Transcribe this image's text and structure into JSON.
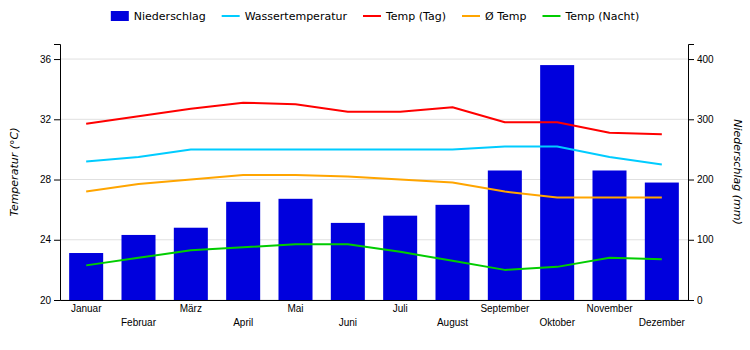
{
  "chart_data": {
    "type": "line",
    "categories": [
      "Januar",
      "Februar",
      "März",
      "April",
      "Mai",
      "Juni",
      "Juli",
      "August",
      "September",
      "Oktober",
      "November",
      "Dezember"
    ],
    "series": [
      {
        "name": "Niederschlag",
        "type": "bar",
        "axis": "y2",
        "color": "#0000dd",
        "values": [
          78,
          108,
          120,
          163,
          168,
          128,
          140,
          158,
          215,
          390,
          215,
          195
        ]
      },
      {
        "name": "Wassertemperatur",
        "type": "line",
        "color": "#00ccff",
        "values": [
          29.2,
          29.5,
          30.0,
          30.0,
          30.0,
          30.0,
          30.0,
          30.0,
          30.2,
          30.2,
          29.5,
          29.0
        ]
      },
      {
        "name": "Temp (Tag)",
        "type": "line",
        "color": "#ff0000",
        "values": [
          31.7,
          32.2,
          32.7,
          33.1,
          33.0,
          32.5,
          32.5,
          32.8,
          31.8,
          31.8,
          31.1,
          31.0
        ]
      },
      {
        "name": "Ø Temp",
        "type": "line",
        "color": "#ffa500",
        "values": [
          27.2,
          27.7,
          28.0,
          28.3,
          28.3,
          28.2,
          28.0,
          27.8,
          27.2,
          26.8,
          26.8,
          26.8
        ]
      },
      {
        "name": "Temp (Nacht)",
        "type": "line",
        "color": "#00cc00",
        "values": [
          22.3,
          22.8,
          23.3,
          23.5,
          23.7,
          23.7,
          23.2,
          22.6,
          22.0,
          22.2,
          22.8,
          22.7
        ]
      }
    ],
    "ylabel": "Temperatur (°C)",
    "y2label": "Niederschlag (mm)",
    "ylim": [
      20,
      37
    ],
    "yticks": [
      20,
      24,
      28,
      32,
      36
    ],
    "y2lim": [
      0,
      425
    ],
    "y2ticks": [
      0,
      100,
      200,
      300,
      400
    ],
    "grid": true,
    "legend": "top"
  }
}
